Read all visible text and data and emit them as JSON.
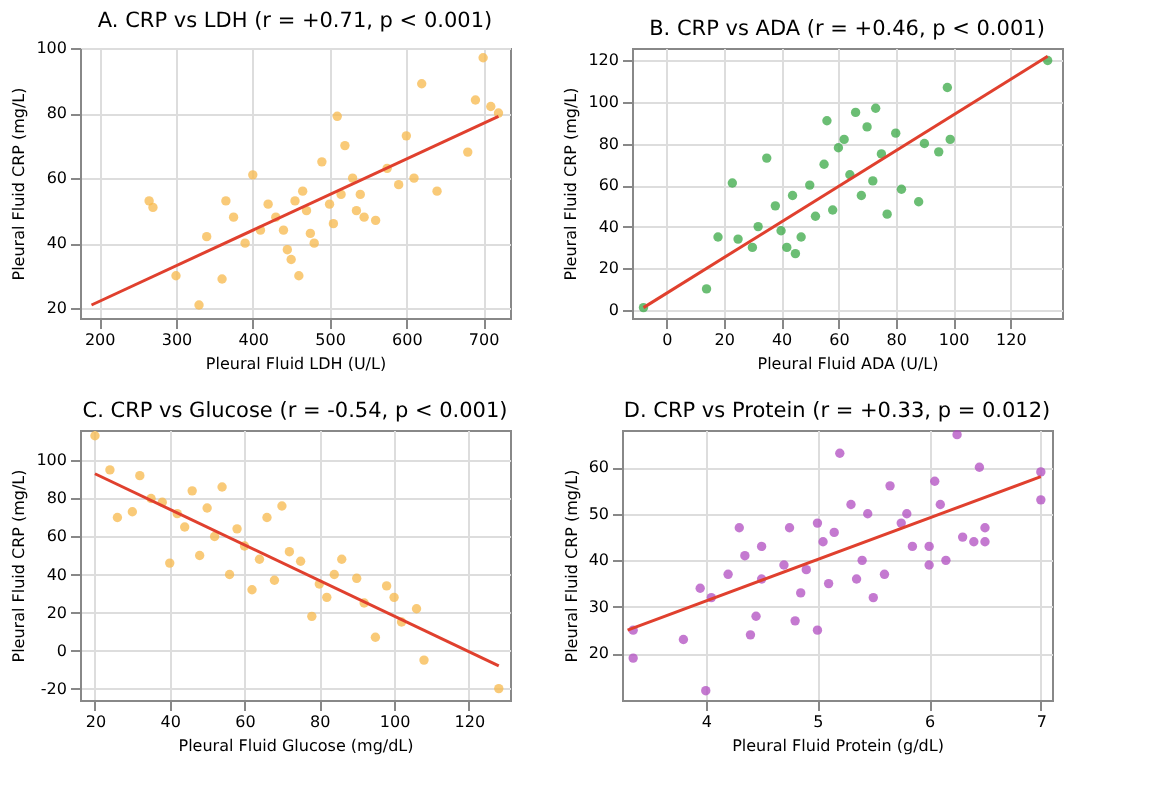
{
  "chart_data": [
    {
      "type": "scatter",
      "title": "A. CRP vs LDH (r = +0.71, p < 0.001)",
      "xlabel": "Pleural Fluid LDH (U/L)",
      "ylabel": "Pleural Fluid CRP (mg/L)",
      "xlim": [
        175,
        735
      ],
      "ylim": [
        17,
        100
      ],
      "xticks": [
        200,
        300,
        400,
        500,
        600,
        700
      ],
      "yticks": [
        20,
        40,
        60,
        80,
        100
      ],
      "grid": true,
      "marker": "circle",
      "series": [
        {
          "type": "scatter",
          "color": "#f7b84b",
          "x": [
            265,
            270,
            300,
            330,
            340,
            360,
            365,
            375,
            390,
            400,
            410,
            420,
            430,
            440,
            445,
            450,
            455,
            460,
            465,
            470,
            475,
            480,
            490,
            500,
            505,
            510,
            515,
            520,
            530,
            535,
            540,
            545,
            560,
            575,
            590,
            600,
            610,
            620,
            640,
            680,
            690,
            700,
            710,
            720
          ],
          "values": [
            53,
            51,
            30,
            21,
            42,
            29,
            53,
            48,
            40,
            61,
            44,
            52,
            48,
            44,
            38,
            35,
            53,
            30,
            56,
            50,
            43,
            40,
            65,
            52,
            46,
            79,
            55,
            70,
            60,
            50,
            55,
            48,
            47,
            63,
            58,
            73,
            60,
            89,
            56,
            68,
            84,
            97,
            82,
            80
          ]
        },
        {
          "type": "line",
          "marker": "none",
          "color": "#e0402e",
          "x": [
            190,
            720
          ],
          "values": [
            21,
            79
          ]
        }
      ]
    },
    {
      "type": "scatter",
      "title": "B. CRP vs ADA (r = +0.46, p < 0.001)",
      "xlabel": "Pleural Fluid ADA (U/L)",
      "ylabel": "Pleural Fluid CRP (mg/L)",
      "xlim": [
        -12,
        138
      ],
      "ylim": [
        -4,
        126
      ],
      "xticks": [
        0,
        20,
        40,
        60,
        80,
        100,
        120
      ],
      "yticks": [
        0,
        20,
        40,
        60,
        80,
        100,
        120
      ],
      "grid": true,
      "marker": "circle",
      "series": [
        {
          "type": "scatter",
          "color": "#3aa845",
          "x": [
            -8,
            14,
            18,
            23,
            25,
            30,
            32,
            35,
            38,
            40,
            42,
            44,
            45,
            47,
            50,
            52,
            55,
            56,
            58,
            60,
            62,
            64,
            66,
            68,
            70,
            72,
            73,
            75,
            77,
            80,
            82,
            88,
            90,
            95,
            98,
            99,
            133
          ],
          "values": [
            1,
            10,
            35,
            61,
            34,
            30,
            40,
            73,
            50,
            38,
            30,
            55,
            27,
            35,
            60,
            45,
            70,
            91,
            48,
            78,
            82,
            65,
            95,
            55,
            88,
            62,
            97,
            75,
            46,
            85,
            58,
            52,
            80,
            76,
            107,
            82,
            120
          ]
        },
        {
          "type": "line",
          "marker": "none",
          "color": "#e0402e",
          "x": [
            -8,
            133
          ],
          "values": [
            1,
            122
          ]
        }
      ]
    },
    {
      "type": "scatter",
      "title": "C. CRP vs Glucose (r = -0.54, p < 0.001)",
      "xlabel": "Pleural Fluid Glucose (mg/dL)",
      "ylabel": "Pleural Fluid CRP (mg/L)",
      "xlim": [
        16,
        131
      ],
      "ylim": [
        -26,
        116
      ],
      "xticks": [
        20,
        40,
        60,
        80,
        100,
        120
      ],
      "yticks": [
        -20,
        0,
        20,
        40,
        60,
        80,
        100
      ],
      "grid": true,
      "marker": "circle",
      "series": [
        {
          "type": "scatter",
          "color": "#f7b84b",
          "x": [
            20,
            24,
            26,
            30,
            32,
            35,
            38,
            40,
            42,
            44,
            46,
            48,
            50,
            52,
            54,
            56,
            58,
            60,
            62,
            64,
            66,
            68,
            70,
            72,
            75,
            78,
            80,
            82,
            84,
            86,
            90,
            92,
            95,
            98,
            100,
            102,
            106,
            108,
            128
          ],
          "values": [
            113,
            95,
            70,
            73,
            92,
            80,
            78,
            46,
            72,
            65,
            84,
            50,
            75,
            60,
            86,
            40,
            64,
            55,
            32,
            48,
            70,
            37,
            76,
            52,
            47,
            18,
            35,
            28,
            40,
            48,
            38,
            25,
            7,
            34,
            28,
            15,
            22,
            -5,
            -20
          ]
        },
        {
          "type": "line",
          "marker": "none",
          "color": "#e0402e",
          "x": [
            20,
            128
          ],
          "values": [
            93,
            -8
          ]
        }
      ]
    },
    {
      "type": "scatter",
      "title": "D. CRP vs Protein (r = +0.33, p = 0.012)",
      "xlabel": "Pleural Fluid Protein (g/dL)",
      "ylabel": "Pleural Fluid CRP (mg/L)",
      "xlim": [
        3.25,
        7.1
      ],
      "ylim": [
        10,
        68
      ],
      "xticks": [
        4,
        5,
        6,
        7
      ],
      "yticks": [
        20,
        30,
        40,
        50,
        60
      ],
      "grid": true,
      "marker": "circle",
      "series": [
        {
          "type": "scatter",
          "color": "#b04cc0",
          "x": [
            3.35,
            3.35,
            3.8,
            3.95,
            4.0,
            4.05,
            4.2,
            4.3,
            4.35,
            4.4,
            4.45,
            4.5,
            4.5,
            4.7,
            4.75,
            4.8,
            4.85,
            4.9,
            5.0,
            5.0,
            5.05,
            5.1,
            5.15,
            5.2,
            5.3,
            5.35,
            5.4,
            5.45,
            5.5,
            5.6,
            5.65,
            5.75,
            5.8,
            5.85,
            6.0,
            6.0,
            6.05,
            6.1,
            6.15,
            6.25,
            6.3,
            6.4,
            6.45,
            6.5,
            6.5,
            7.0,
            7.0
          ],
          "values": [
            25,
            19,
            23,
            34,
            12,
            32,
            37,
            47,
            41,
            24,
            28,
            36,
            43,
            39,
            47,
            27,
            33,
            38,
            25,
            48,
            44,
            35,
            46,
            63,
            52,
            36,
            40,
            50,
            32,
            37,
            56,
            48,
            50,
            43,
            39,
            43,
            57,
            52,
            40,
            67,
            45,
            44,
            60,
            47,
            44,
            59,
            53
          ]
        },
        {
          "type": "line",
          "marker": "none",
          "color": "#e0402e",
          "x": [
            3.3,
            7.0
          ],
          "values": [
            25,
            58
          ]
        }
      ]
    }
  ]
}
